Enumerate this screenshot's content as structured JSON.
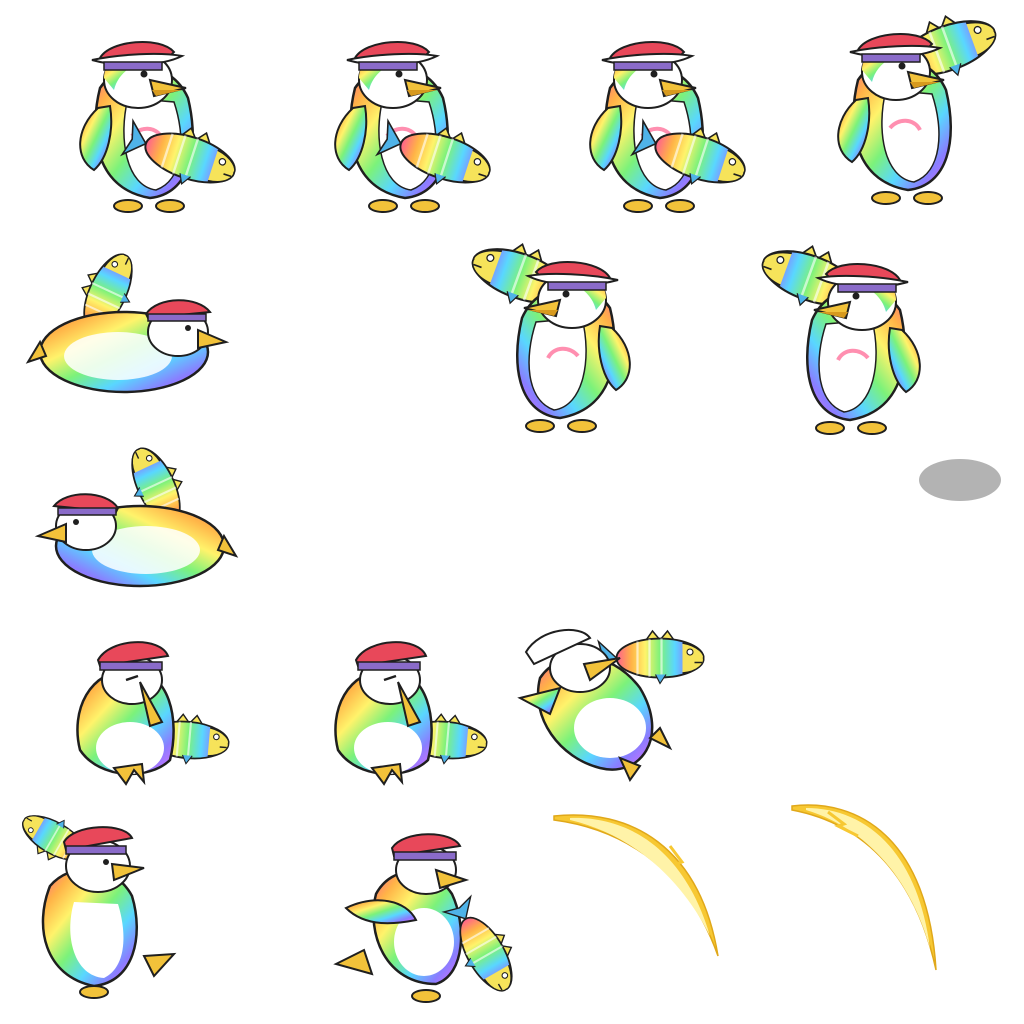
{
  "sheet": {
    "background": "#ffffff",
    "palette": {
      "outline": "#1f1f1f",
      "hat_red": "#e8485a",
      "hat_trim": "#ffffff",
      "bandana": "#8a6bc9",
      "beak": "#f2c23a",
      "beak_shadow": "#d79a1e",
      "feet": "#f2c23a",
      "belly": "#ffffff",
      "rainbow": [
        "#ff5f8f",
        "#ffb347",
        "#fff36b",
        "#7cf27a",
        "#59d7ff",
        "#8a7dff",
        "#e86bff"
      ],
      "fish_fin": "#4fb3e8",
      "fish_body_a": "#ff7ab8",
      "fish_body_b": "#f6e35a",
      "fish_body_c": "#88e07a",
      "shadow": "#b3b3b3",
      "slash": "#f7c832",
      "slash_core": "#fff3a8"
    }
  },
  "frames": [
    {
      "id": "idle-1",
      "pose": "standing-fish-low",
      "facing": "right"
    },
    {
      "id": "idle-2",
      "pose": "standing-fish-low",
      "facing": "right"
    },
    {
      "id": "idle-3",
      "pose": "standing-fish-low",
      "facing": "right"
    },
    {
      "id": "attack-raise-1",
      "pose": "standing-fish-raised",
      "facing": "right"
    },
    {
      "id": "down-1",
      "pose": "lying-down",
      "facing": "right"
    },
    {
      "id": "attack-raise-2",
      "pose": "standing-fish-raised",
      "facing": "left"
    },
    {
      "id": "attack-raise-3",
      "pose": "standing-fish-raised",
      "facing": "left"
    },
    {
      "id": "down-2",
      "pose": "lying-down",
      "facing": "left"
    },
    {
      "id": "hurt-1",
      "pose": "sitting",
      "facing": "right"
    },
    {
      "id": "hurt-2",
      "pose": "sitting",
      "facing": "right"
    },
    {
      "id": "knockback",
      "pose": "falling-back",
      "facing": "right"
    },
    {
      "id": "jump-swing",
      "pose": "fish-overhead",
      "facing": "right"
    },
    {
      "id": "dash-swing",
      "pose": "lunging",
      "facing": "right"
    }
  ],
  "effects": [
    {
      "id": "ground-shadow",
      "kind": "ellipse-shadow"
    },
    {
      "id": "slash-effect-1",
      "kind": "arc-slash"
    },
    {
      "id": "slash-effect-2",
      "kind": "arc-slash"
    }
  ]
}
